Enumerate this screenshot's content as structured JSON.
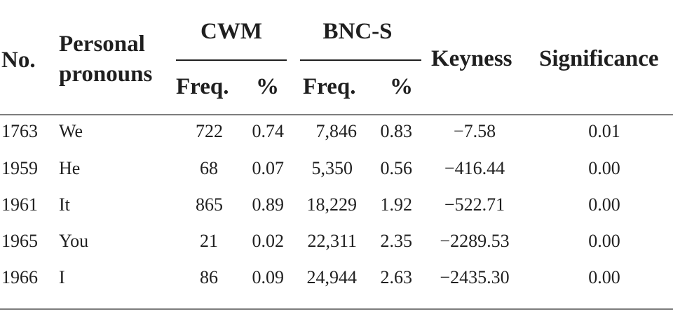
{
  "table": {
    "headers": {
      "no": "No.",
      "pronoun_line1": "Personal",
      "pronoun_line2": "pronouns",
      "cwm": "CWM",
      "bncs": "BNC-S",
      "keyness": "Keyness",
      "significance": "Significance",
      "freq": "Freq.",
      "pct": "%"
    },
    "rows": [
      {
        "no": "1763",
        "pronoun": "We",
        "cwm_freq": "722",
        "cwm_pct": "0.74",
        "bnc_freq": "7,846",
        "bnc_pct": "0.83",
        "keyness": "−7.58",
        "significance": "0.01"
      },
      {
        "no": "1959",
        "pronoun": "He",
        "cwm_freq": "68",
        "cwm_pct": "0.07",
        "bnc_freq": "5,350",
        "bnc_pct": "0.56",
        "keyness": "−416.44",
        "significance": "0.00"
      },
      {
        "no": "1961",
        "pronoun": "It",
        "cwm_freq": "865",
        "cwm_pct": "0.89",
        "bnc_freq": "18,229",
        "bnc_pct": "1.92",
        "keyness": "−522.71",
        "significance": "0.00"
      },
      {
        "no": "1965",
        "pronoun": "You",
        "cwm_freq": "21",
        "cwm_pct": "0.02",
        "bnc_freq": "22,311",
        "bnc_pct": "2.35",
        "keyness": "−2289.53",
        "significance": "0.00"
      },
      {
        "no": "1966",
        "pronoun": "I",
        "cwm_freq": "86",
        "cwm_pct": "0.09",
        "bnc_freq": "24,944",
        "bnc_pct": "2.63",
        "keyness": "−2435.30",
        "significance": "0.00"
      }
    ]
  }
}
